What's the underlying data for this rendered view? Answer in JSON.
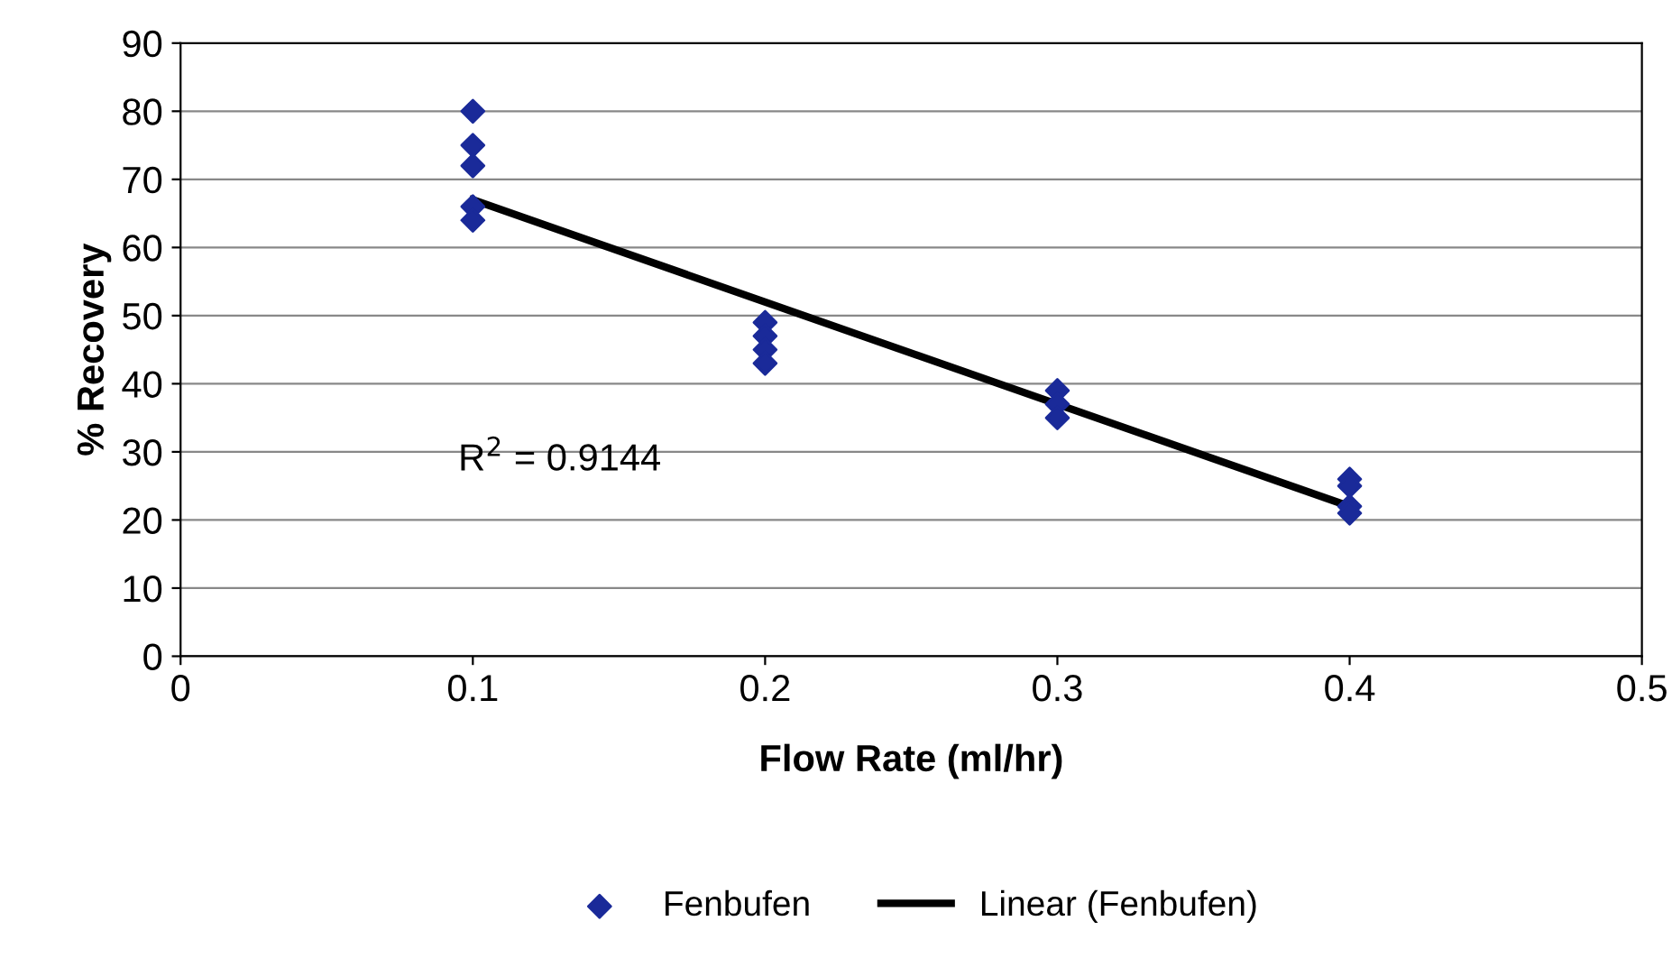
{
  "chart_data": {
    "type": "scatter",
    "xlabel": "Flow Rate (ml/hr)",
    "ylabel": "% Recovery",
    "series": [
      {
        "name": "Fenbufen",
        "color": "#1a2a99",
        "marker": "diamond",
        "x": [
          0.1,
          0.1,
          0.1,
          0.1,
          0.1,
          0.2,
          0.2,
          0.2,
          0.2,
          0.3,
          0.3,
          0.3,
          0.4,
          0.4,
          0.4,
          0.4
        ],
        "values": [
          80,
          75,
          72,
          66,
          64,
          49,
          47,
          45,
          43,
          39,
          37,
          35,
          26,
          25,
          22,
          21
        ]
      },
      {
        "name": "Linear (Fenbufen)",
        "type": "line",
        "color": "#000000",
        "marker": "none",
        "line_style": "solid",
        "x": [
          0.1,
          0.4
        ],
        "values": [
          67,
          22
        ]
      }
    ],
    "annotations": [
      "R$^{2}$ = 0.9144"
    ],
    "xlim": [
      0,
      0.5
    ],
    "xticks": [
      0,
      0.1,
      0.2,
      0.3,
      0.4,
      0.5
    ],
    "ylim": [
      0,
      90
    ],
    "yticks": [
      0,
      10,
      20,
      30,
      40,
      50,
      60,
      70,
      80,
      90
    ],
    "grid": "y",
    "legend": "bottom"
  }
}
